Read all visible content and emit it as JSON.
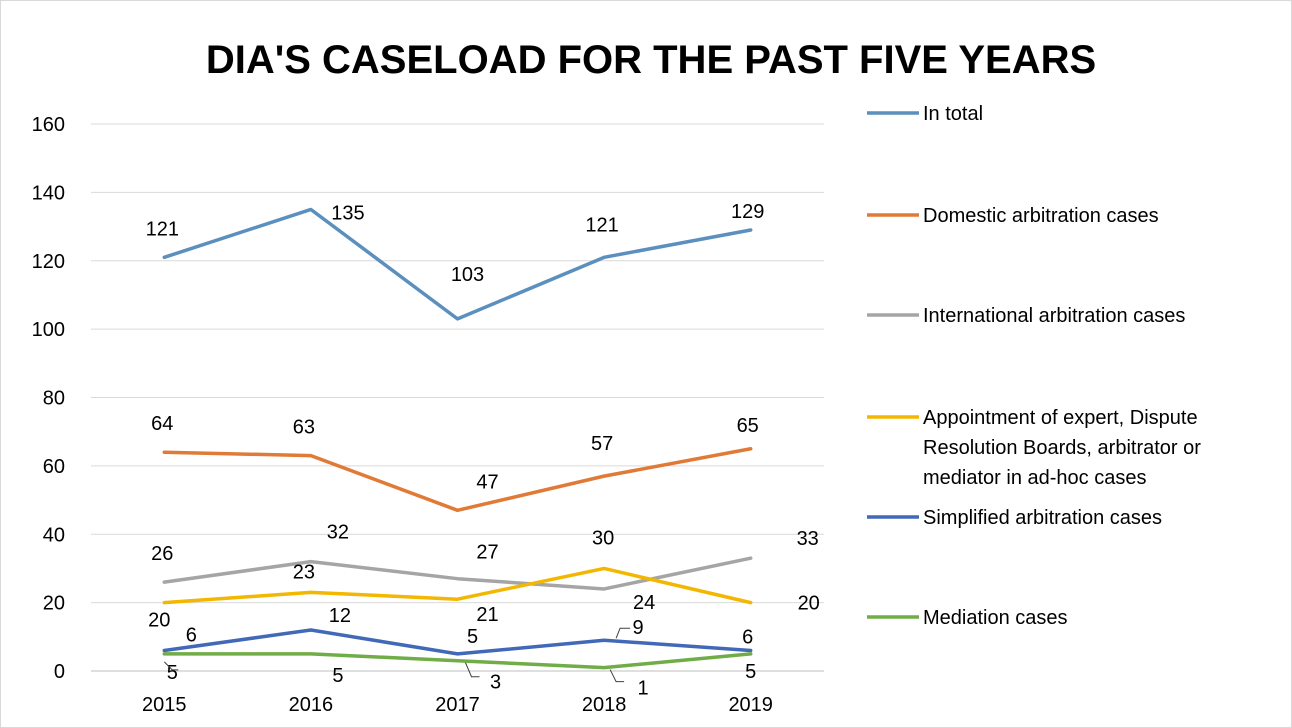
{
  "chart_data": {
    "type": "line",
    "title": "DIA'S CASELOAD FOR THE PAST FIVE YEARS",
    "xlabel": "",
    "ylabel": "",
    "categories": [
      "2015",
      "2016",
      "2017",
      "2018",
      "2019"
    ],
    "ylim": [
      0,
      160
    ],
    "yticks": [
      "0",
      "20",
      "40",
      "60",
      "80",
      "100",
      "120",
      "140",
      "160"
    ],
    "grid": true,
    "legend_position": "right",
    "series": [
      {
        "name": "In total",
        "color": "#5b8fbe",
        "values": [
          121,
          135,
          103,
          121,
          129
        ],
        "labels": [
          "121",
          "135",
          "103",
          "121",
          "129"
        ]
      },
      {
        "name": "Domestic arbitration cases",
        "color": "#e07a36",
        "values": [
          64,
          63,
          47,
          57,
          65
        ],
        "labels": [
          "64",
          "63",
          "47",
          "57",
          "65"
        ]
      },
      {
        "name": "International arbitration cases",
        "color": "#a5a5a5",
        "values": [
          26,
          32,
          27,
          24,
          33
        ],
        "labels": [
          "26",
          "32",
          "27",
          "24",
          "33"
        ]
      },
      {
        "name": "Appointment of expert, Dispute Resolution Boards, arbitrator or mediator in ad-hoc cases",
        "legend_lines": [
          "Appointment of expert, Dispute",
          "Resolution Boards, arbitrator or",
          "mediator in ad-hoc cases"
        ],
        "color": "#f3b700",
        "values": [
          20,
          23,
          21,
          30,
          20
        ],
        "labels": [
          "20",
          "23",
          "21",
          "30",
          "20"
        ]
      },
      {
        "name": "Simplified arbitration cases",
        "color": "#4169b8",
        "values": [
          6,
          12,
          5,
          9,
          6
        ],
        "labels": [
          "6",
          "12",
          "5",
          "9",
          "6"
        ]
      },
      {
        "name": "Mediation cases",
        "color": "#70ad47",
        "values": [
          5,
          5,
          3,
          1,
          5
        ],
        "labels": [
          "5",
          "5",
          "3",
          "1",
          "5"
        ]
      }
    ]
  }
}
